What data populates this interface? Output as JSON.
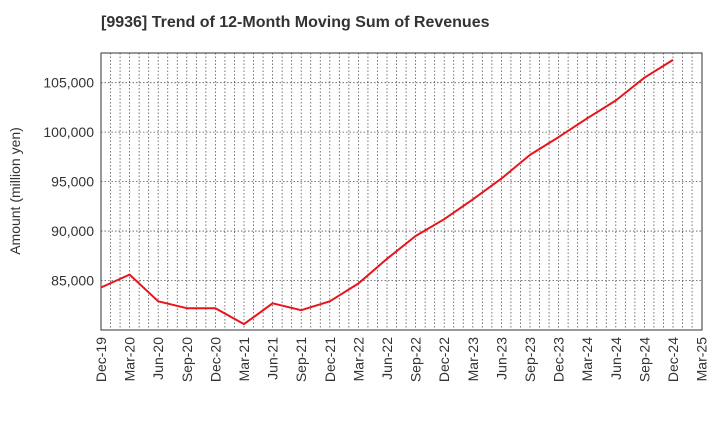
{
  "chart_data": {
    "type": "line",
    "title": "[9936]  Trend of 12-Month Moving Sum of Revenues",
    "ylabel": "Amount (million yen)",
    "xlabel": "",
    "ylim": [
      80000,
      108000
    ],
    "yticks": [
      85000,
      90000,
      95000,
      100000,
      105000
    ],
    "ytick_labels": [
      "85,000",
      "90,000",
      "95,000",
      "100,000",
      "105,000"
    ],
    "x_tick_labels": [
      "Dec-19",
      "Mar-20",
      "Jun-20",
      "Sep-20",
      "Dec-20",
      "Mar-21",
      "Jun-21",
      "Sep-21",
      "Dec-21",
      "Mar-22",
      "Jun-22",
      "Sep-22",
      "Dec-22",
      "Mar-23",
      "Jun-23",
      "Sep-23",
      "Dec-23",
      "Mar-24",
      "Jun-24",
      "Sep-24",
      "Dec-24",
      "Mar-25"
    ],
    "grid": true,
    "line_color": "#e8141b",
    "series": [
      {
        "x": [
          "Dec-19",
          "Mar-20",
          "Jun-20",
          "Sep-20",
          "Dec-20",
          "Mar-21",
          "Jun-21",
          "Sep-21",
          "Dec-21",
          "Mar-22",
          "Jun-22",
          "Sep-22",
          "Dec-22",
          "Mar-23",
          "Jun-23",
          "Sep-23",
          "Dec-23",
          "Mar-24",
          "Jun-24",
          "Sep-24",
          "Dec-24"
        ],
        "values": [
          84300,
          85600,
          82900,
          82200,
          82200,
          80600,
          82700,
          82000,
          82900,
          84700,
          87200,
          89500,
          91200,
          93200,
          95300,
          97700,
          99500,
          101400,
          103200,
          105500,
          107300
        ]
      }
    ]
  }
}
